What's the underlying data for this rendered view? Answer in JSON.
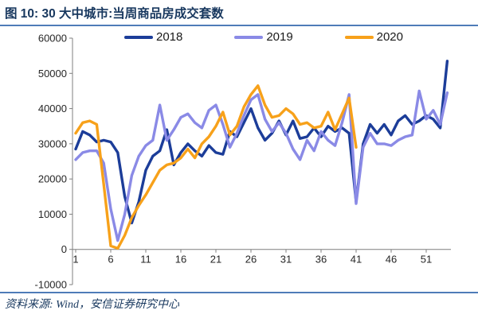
{
  "title": "图 10: 30 大中城市:当周商品房成交套数",
  "footer": {
    "source_text": "资料来源: Wind，安信证券研究中心"
  },
  "colors": {
    "series_2018": "#1c3d99",
    "series_2019": "#8a8ae6",
    "series_2020": "#f7a11a",
    "title_text": "#17375e",
    "rule": "#4e7cb8",
    "axis": "#7f7f7f"
  },
  "chart_data": {
    "type": "line",
    "title": "30大中城市:当周商品房成交套数",
    "xlabel": "",
    "ylabel": "",
    "x_start": 1,
    "x_step": 1,
    "x_ticks": [
      1,
      6,
      11,
      16,
      21,
      26,
      31,
      36,
      41,
      46,
      51
    ],
    "ylim": [
      -10000,
      60000
    ],
    "y_ticks": [
      -10000,
      0,
      10000,
      20000,
      30000,
      40000,
      50000,
      60000
    ],
    "grid": false,
    "legend_position": "top",
    "series": [
      {
        "name": "2018",
        "color": "#1c3d99",
        "values": [
          28500,
          33500,
          32500,
          30500,
          31000,
          30500,
          27500,
          15000,
          7500,
          13500,
          22500,
          26500,
          28000,
          34000,
          24000,
          27500,
          30000,
          28000,
          26500,
          29500,
          27500,
          27000,
          33500,
          32000,
          36000,
          40000,
          34500,
          31000,
          33000,
          36500,
          32500,
          36500,
          31500,
          32000,
          34500,
          32000,
          35000,
          33500,
          34500,
          33000,
          13500,
          30000,
          35500,
          33000,
          35500,
          32500,
          36500,
          38000,
          35500,
          36500,
          38000,
          37000,
          34500,
          53500
        ]
      },
      {
        "name": "2019",
        "color": "#8a8ae6",
        "values": [
          25500,
          27500,
          28000,
          28000,
          24500,
          11500,
          2500,
          10000,
          21000,
          26500,
          29500,
          31000,
          41000,
          31000,
          34000,
          37500,
          38500,
          36000,
          34500,
          39500,
          41000,
          35500,
          29000,
          33000,
          38000,
          42500,
          44000,
          37000,
          33500,
          36000,
          33000,
          28500,
          25500,
          31000,
          28000,
          33500,
          31000,
          29500,
          36000,
          44000,
          13000,
          29000,
          33000,
          30000,
          30000,
          29500,
          31000,
          32000,
          32500,
          45000,
          37000,
          39500,
          35500,
          44500
        ]
      },
      {
        "name": "2020",
        "color": "#f7a11a",
        "values": [
          33000,
          36000,
          36500,
          35500,
          18500,
          1000,
          300,
          4000,
          9000,
          12500,
          15500,
          19000,
          22500,
          24000,
          24500,
          26000,
          28500,
          26000,
          30000,
          32000,
          35000,
          39000,
          32500,
          35000,
          40500,
          44000,
          46500,
          41000,
          37500,
          38000,
          40000,
          38500,
          35500,
          36000,
          34500,
          35000,
          39000,
          34000,
          38500,
          43000,
          29000
        ]
      }
    ]
  }
}
